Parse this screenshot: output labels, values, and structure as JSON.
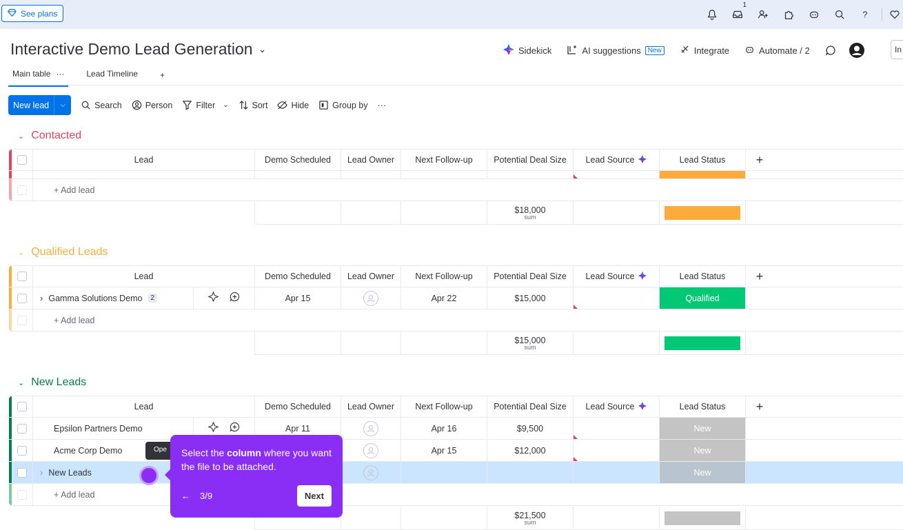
{
  "topbar": {
    "see_plans": "See plans",
    "inbox_badge": "1"
  },
  "header": {
    "title": "Interactive Demo Lead Generation",
    "actions": {
      "sidekick": "Sidekick",
      "ai_suggestions": "AI suggestions",
      "ai_new_tag": "New",
      "integrate": "Integrate",
      "automate": "Automate / 2"
    },
    "invite": "In"
  },
  "tabs": [
    {
      "label": "Main table",
      "more": "···"
    },
    {
      "label": "Lead Timeline"
    },
    {
      "label": "+"
    }
  ],
  "toolbar": {
    "new_lead": "New lead",
    "search": "Search",
    "person": "Person",
    "filter": "Filter",
    "sort": "Sort",
    "hide": "Hide",
    "group_by": "Group by",
    "more": "···"
  },
  "columns": {
    "lead": "Lead",
    "demo": "Demo Scheduled",
    "owner": "Lead Owner",
    "next": "Next Follow-up",
    "deal": "Potential Deal Size",
    "source": "Lead Source",
    "status": "Lead Status",
    "add": "+"
  },
  "add_lead": "+ Add lead",
  "sum_label": "sum",
  "groups": {
    "contacted": {
      "name": "Contacted",
      "color": "#e2445c",
      "sum": "$18,000",
      "status_color": "#fdab3d"
    },
    "qualified": {
      "name": "Qualified Leads",
      "color": "#fdab3d",
      "sum": "$15,000",
      "status_color": "#00c875",
      "rows": [
        {
          "lead": "Gamma Solutions Demo",
          "count": "2",
          "demo": "Apr 15",
          "next": "Apr 22",
          "deal": "$15,000",
          "status": "Qualified"
        }
      ]
    },
    "new": {
      "name": "New Leads",
      "color": "#037f4c",
      "sum": "$21,500",
      "status_color": "#c4c4c4",
      "rows": [
        {
          "lead": "Epsilon Partners Demo",
          "demo": "Apr 11",
          "next": "Apr 16",
          "deal": "$9,500",
          "status": "New"
        },
        {
          "lead": "Acme Corp Demo",
          "demo": "",
          "next": "Apr 15",
          "deal": "$12,000",
          "status": "New"
        },
        {
          "lead": "New Leads",
          "demo": "",
          "next": "",
          "deal": "",
          "status": "New"
        }
      ]
    }
  },
  "tooltip": {
    "text_pre": "Select the ",
    "text_bold": "column",
    "text_post": " where you want the file to be attached.",
    "back": "←",
    "progress": "3/9",
    "next": "Next",
    "open_label": "Ope"
  }
}
